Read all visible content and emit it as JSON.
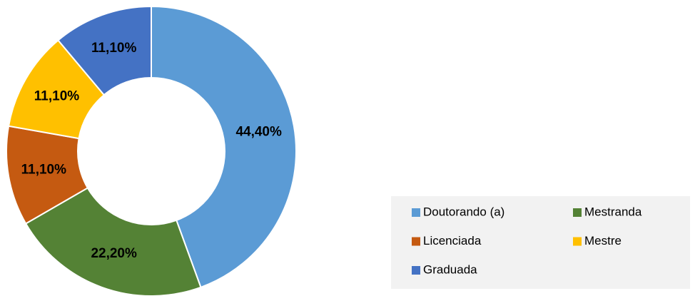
{
  "chart_data": {
    "type": "donut",
    "series": [
      {
        "name": "Doutorando (a)",
        "color": "#5b9bd5",
        "values": [
          44.4
        ],
        "value_labels": [
          "44,40%"
        ]
      },
      {
        "name": "Mestranda",
        "color": "#548235",
        "values": [
          22.2
        ],
        "value_labels": [
          "22,20%"
        ]
      },
      {
        "name": "Licenciada",
        "color": "#c55a11",
        "values": [
          11.1
        ],
        "value_labels": [
          "11,10%"
        ]
      },
      {
        "name": "Mestre",
        "color": "#ffc000",
        "values": [
          11.1
        ],
        "value_labels": [
          "11,10%"
        ]
      },
      {
        "name": "Graduada",
        "color": "#4472c4",
        "values": [
          11.1
        ],
        "value_labels": [
          "11,10%"
        ]
      }
    ],
    "legend": "bottom-right"
  }
}
